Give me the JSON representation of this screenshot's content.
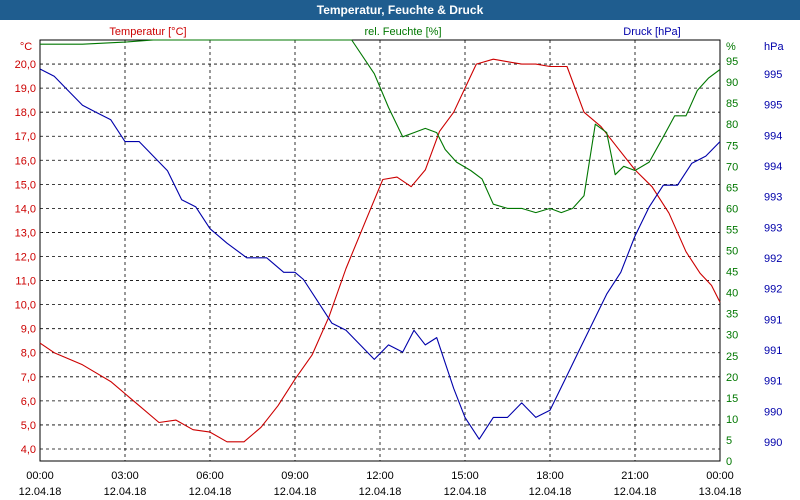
{
  "window": {
    "title": "Temperatur, Feuchte & Druck"
  },
  "colors": {
    "temperature": "#cc0000",
    "humidity": "#007700",
    "pressure": "#0000aa",
    "title_bar": "#1f5d8f"
  },
  "chart_data": {
    "type": "line",
    "title": "Temperatur, Feuchte & Druck",
    "x_hours": [
      0,
      24
    ],
    "x_ticks": [
      {
        "time": "00:00",
        "date": "12.04.18"
      },
      {
        "time": "03:00",
        "date": "12.04.18"
      },
      {
        "time": "06:00",
        "date": "12.04.18"
      },
      {
        "time": "09:00",
        "date": "12.04.18"
      },
      {
        "time": "12:00",
        "date": "12.04.18"
      },
      {
        "time": "15:00",
        "date": "12.04.18"
      },
      {
        "time": "18:00",
        "date": "12.04.18"
      },
      {
        "time": "21:00",
        "date": "12.04.18"
      },
      {
        "time": "00:00",
        "date": "13.04.18"
      }
    ],
    "axes": {
      "temperature": {
        "label": "Temperatur [°C]",
        "unit": "°C",
        "range": [
          3.5,
          21.0
        ],
        "ticks": [
          "4,0",
          "5,0",
          "6,0",
          "7,0",
          "8,0",
          "9,0",
          "10,0",
          "11,0",
          "12,0",
          "13,0",
          "14,0",
          "15,0",
          "16,0",
          "17,0",
          "18,0",
          "19,0",
          "20,0"
        ]
      },
      "humidity": {
        "label": "rel. Feuchte [%]",
        "unit": "%",
        "range": [
          0,
          100
        ],
        "ticks": [
          "0",
          "5",
          "10",
          "15",
          "20",
          "25",
          "30",
          "35",
          "40",
          "45",
          "50",
          "55",
          "60",
          "65",
          "70",
          "75",
          "80",
          "85",
          "90",
          "95"
        ]
      },
      "pressure": {
        "label": "Druck [hPa]",
        "unit": "hPa",
        "range": [
          989.7,
          995.5
        ],
        "ticks": [
          "990",
          "990",
          "991",
          "991",
          "991",
          "992",
          "992",
          "993",
          "993",
          "994",
          "994",
          "995",
          "995"
        ]
      }
    },
    "series": [
      {
        "name": "Temperatur",
        "axis": "temperature",
        "points": [
          [
            0,
            8.4
          ],
          [
            0.5,
            8.0
          ],
          [
            1.5,
            7.5
          ],
          [
            2.5,
            6.8
          ],
          [
            3.5,
            5.8
          ],
          [
            4.2,
            5.1
          ],
          [
            4.8,
            5.2
          ],
          [
            5.4,
            4.8
          ],
          [
            6.0,
            4.7
          ],
          [
            6.6,
            4.3
          ],
          [
            7.2,
            4.3
          ],
          [
            7.8,
            4.9
          ],
          [
            8.4,
            5.8
          ],
          [
            9.0,
            6.9
          ],
          [
            9.6,
            7.9
          ],
          [
            10.2,
            9.5
          ],
          [
            10.8,
            11.5
          ],
          [
            11.5,
            13.5
          ],
          [
            12.1,
            15.2
          ],
          [
            12.6,
            15.3
          ],
          [
            13.1,
            14.9
          ],
          [
            13.6,
            15.6
          ],
          [
            14.1,
            17.2
          ],
          [
            14.6,
            18.0
          ],
          [
            15.0,
            19.0
          ],
          [
            15.4,
            20.0
          ],
          [
            16.0,
            20.2
          ],
          [
            16.5,
            20.1
          ],
          [
            17.0,
            20.0
          ],
          [
            17.5,
            20.0
          ],
          [
            18.0,
            19.9
          ],
          [
            18.6,
            19.9
          ],
          [
            19.2,
            18.0
          ],
          [
            19.8,
            17.4
          ],
          [
            20.4,
            16.5
          ],
          [
            21.0,
            15.6
          ],
          [
            21.6,
            14.9
          ],
          [
            22.2,
            13.8
          ],
          [
            22.8,
            12.2
          ],
          [
            23.3,
            11.3
          ],
          [
            23.7,
            10.8
          ],
          [
            24.0,
            10.1
          ]
        ]
      },
      {
        "name": "rel. Feuchte",
        "axis": "humidity",
        "points": [
          [
            0,
            99
          ],
          [
            1.5,
            99
          ],
          [
            3,
            99.5
          ],
          [
            4,
            100
          ],
          [
            11,
            100
          ],
          [
            11.8,
            92
          ],
          [
            12.3,
            84
          ],
          [
            12.8,
            77
          ],
          [
            13.2,
            78
          ],
          [
            13.6,
            79
          ],
          [
            14.0,
            78
          ],
          [
            14.3,
            74
          ],
          [
            14.7,
            71
          ],
          [
            15.2,
            69
          ],
          [
            15.6,
            67
          ],
          [
            16.0,
            61
          ],
          [
            16.5,
            60
          ],
          [
            17.0,
            60
          ],
          [
            17.5,
            59
          ],
          [
            18.0,
            60
          ],
          [
            18.4,
            59
          ],
          [
            18.8,
            60
          ],
          [
            19.2,
            63
          ],
          [
            19.6,
            80
          ],
          [
            20.0,
            78
          ],
          [
            20.3,
            68
          ],
          [
            20.6,
            70
          ],
          [
            21.0,
            69
          ],
          [
            21.5,
            71
          ],
          [
            22.0,
            77
          ],
          [
            22.4,
            82
          ],
          [
            22.8,
            82
          ],
          [
            23.2,
            88
          ],
          [
            23.6,
            91
          ],
          [
            24.0,
            93
          ]
        ]
      },
      {
        "name": "Druck",
        "axis": "pressure",
        "points": [
          [
            0,
            995.1
          ],
          [
            0.5,
            995.0
          ],
          [
            1,
            994.8
          ],
          [
            1.5,
            994.6
          ],
          [
            2,
            994.5
          ],
          [
            2.5,
            994.4
          ],
          [
            3,
            994.1
          ],
          [
            3.5,
            994.1
          ],
          [
            4,
            993.9
          ],
          [
            4.5,
            993.7
          ],
          [
            5,
            993.3
          ],
          [
            5.5,
            993.2
          ],
          [
            6,
            992.9
          ],
          [
            6.6,
            992.7
          ],
          [
            7.3,
            992.5
          ],
          [
            8,
            992.5
          ],
          [
            8.6,
            992.3
          ],
          [
            9,
            992.3
          ],
          [
            9.3,
            992.2
          ],
          [
            9.8,
            991.9
          ],
          [
            10.3,
            991.6
          ],
          [
            10.8,
            991.5
          ],
          [
            11.3,
            991.3
          ],
          [
            11.8,
            991.1
          ],
          [
            12.3,
            991.3
          ],
          [
            12.8,
            991.2
          ],
          [
            13.2,
            991.5
          ],
          [
            13.6,
            991.3
          ],
          [
            14.0,
            991.4
          ],
          [
            14.6,
            990.7
          ],
          [
            15.0,
            990.3
          ],
          [
            15.5,
            990.0
          ],
          [
            16.0,
            990.3
          ],
          [
            16.5,
            990.3
          ],
          [
            17.0,
            990.5
          ],
          [
            17.5,
            990.3
          ],
          [
            18.0,
            990.4
          ],
          [
            18.5,
            990.8
          ],
          [
            19.0,
            991.2
          ],
          [
            19.5,
            991.6
          ],
          [
            20.0,
            992.0
          ],
          [
            20.5,
            992.3
          ],
          [
            21.0,
            992.8
          ],
          [
            21.5,
            993.2
          ],
          [
            22.0,
            993.5
          ],
          [
            22.5,
            993.5
          ],
          [
            23.0,
            993.8
          ],
          [
            23.5,
            993.9
          ],
          [
            24.0,
            994.1
          ]
        ]
      }
    ]
  }
}
